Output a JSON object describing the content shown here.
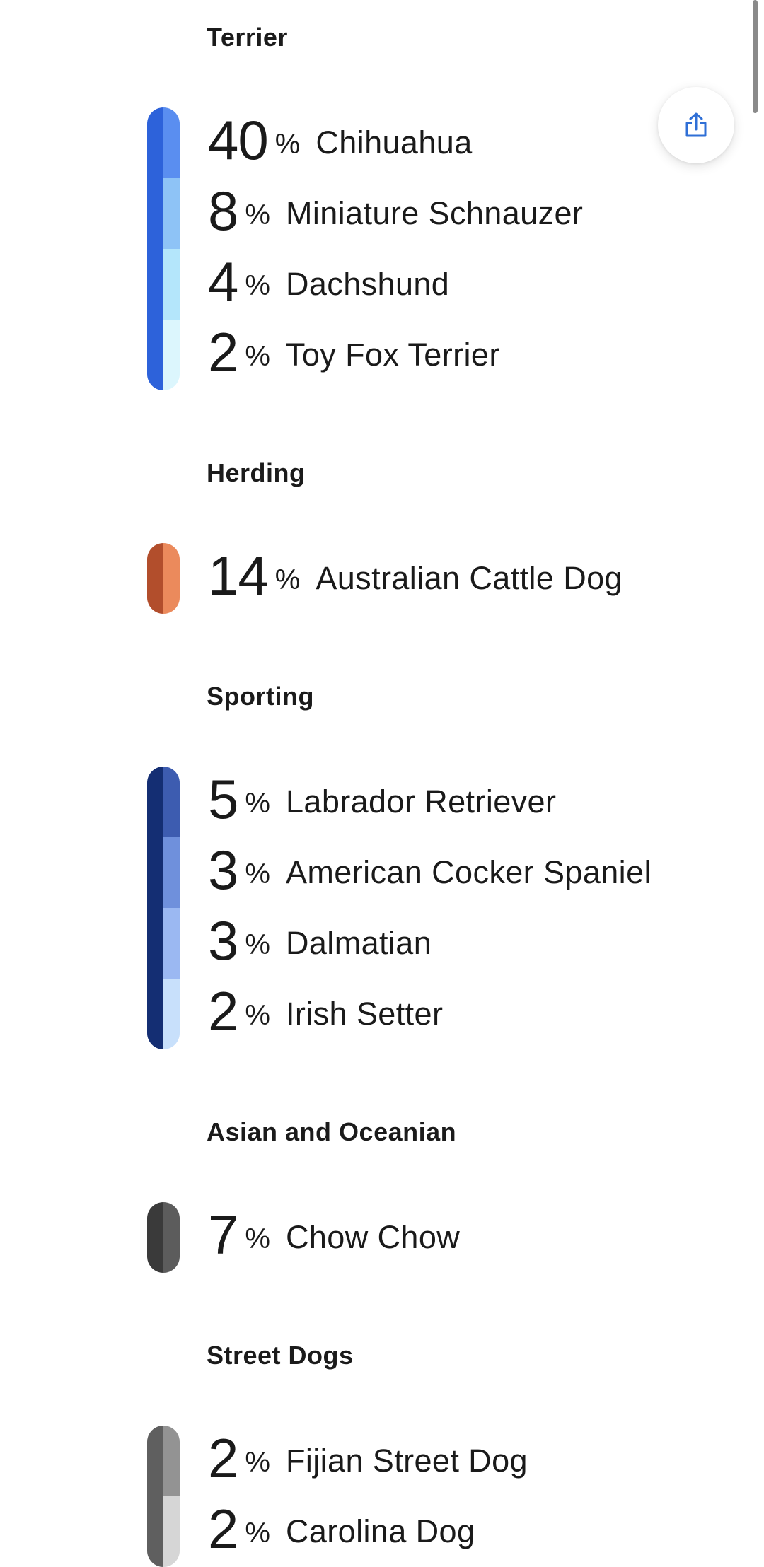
{
  "percent_sign": "%",
  "share_icon": "share-upload-icon",
  "groups": [
    {
      "title": "Terrier",
      "dark_color": "#2d62da",
      "breeds": [
        {
          "percent": "40",
          "name": "Chihuahua",
          "color": "#5a8ef0"
        },
        {
          "percent": "8",
          "name": "Miniature Schnauzer",
          "color": "#8ec3f6"
        },
        {
          "percent": "4",
          "name": "Dachshund",
          "color": "#b4e6fb"
        },
        {
          "percent": "2",
          "name": "Toy Fox Terrier",
          "color": "#dcf6fd"
        }
      ]
    },
    {
      "title": "Herding",
      "dark_color": "#b24e2c",
      "breeds": [
        {
          "percent": "14",
          "name": "Australian Cattle Dog",
          "color": "#eb8a5c"
        }
      ]
    },
    {
      "title": "Sporting",
      "dark_color": "#142e73",
      "breeds": [
        {
          "percent": "5",
          "name": "Labrador Retriever",
          "color": "#3d5cb0"
        },
        {
          "percent": "3",
          "name": "American Cocker Spaniel",
          "color": "#6f90dc"
        },
        {
          "percent": "3",
          "name": "Dalmatian",
          "color": "#9bb8f2"
        },
        {
          "percent": "2",
          "name": "Irish Setter",
          "color": "#c8e0fb"
        }
      ]
    },
    {
      "title": "Asian and Oceanian",
      "dark_color": "#3a3a3a",
      "breeds": [
        {
          "percent": "7",
          "name": "Chow Chow",
          "color": "#5c5c5c"
        }
      ]
    },
    {
      "title": "Street Dogs",
      "dark_color": "#5f5f5f",
      "breeds": [
        {
          "percent": "2",
          "name": "Fijian Street Dog",
          "color": "#939393"
        },
        {
          "percent": "2",
          "name": "Carolina Dog",
          "color": "#d6d6d6"
        }
      ]
    }
  ]
}
